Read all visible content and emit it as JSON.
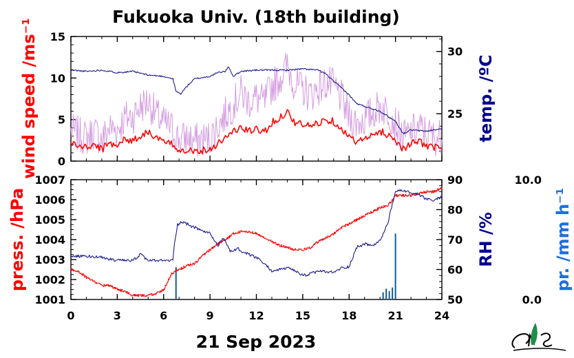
{
  "chart_data": [
    {
      "type": "line",
      "title": "Fukuoka Univ. (18th building)",
      "x_range": [
        0,
        24
      ],
      "y_left": {
        "label": "wind speed /ms⁻¹",
        "ylim": [
          0,
          15
        ],
        "ticks": [
          "0",
          "5",
          "10",
          "15"
        ],
        "color": "#ff0000"
      },
      "y_right": {
        "label": "temp. /ºC",
        "ylim": [
          21.2,
          31.2
        ],
        "ticks": [
          "25",
          "30"
        ],
        "color": "#00008b"
      },
      "colors": {
        "wind_mean": "#ff0000",
        "wind_gust": "#d49be0",
        "temperature": "#1a1a8c"
      },
      "series": [
        {
          "key": "wind_mean",
          "axis": "left",
          "x": [
            0,
            0.5,
            1,
            1.5,
            2,
            2.5,
            3,
            3.5,
            4,
            4.5,
            5,
            5.5,
            6,
            6.5,
            7,
            7.5,
            8,
            8.5,
            9,
            9.5,
            10,
            10.5,
            11,
            11.5,
            12,
            12.5,
            13,
            13.5,
            14,
            14.5,
            15,
            15.5,
            16,
            16.5,
            17,
            17.5,
            18,
            18.5,
            19,
            19.5,
            20,
            20.5,
            21,
            21.5,
            22,
            22.5,
            23,
            23.5,
            24
          ],
          "y": [
            2.2,
            1.8,
            1.6,
            2.0,
            1.4,
            2.2,
            2.0,
            2.6,
            2.5,
            3.0,
            3.6,
            2.8,
            2.3,
            2.0,
            1.4,
            1.4,
            1.2,
            1.3,
            1.4,
            2.2,
            2.8,
            3.6,
            4.0,
            3.6,
            3.8,
            3.5,
            4.6,
            5.2,
            6.0,
            4.6,
            4.4,
            4.2,
            4.6,
            5.0,
            4.8,
            4.0,
            2.8,
            2.4,
            2.6,
            3.0,
            3.6,
            3.2,
            2.5,
            1.5,
            2.0,
            2.4,
            1.9,
            1.6,
            1.8
          ]
        },
        {
          "key": "wind_gust",
          "axis": "left",
          "x": [
            0,
            0.5,
            1,
            1.5,
            2,
            2.5,
            3,
            3.5,
            4,
            4.5,
            5,
            5.5,
            6,
            6.5,
            7,
            7.5,
            8,
            8.5,
            9,
            9.5,
            10,
            10.5,
            11,
            11.5,
            12,
            12.5,
            13,
            13.5,
            14,
            14.5,
            15,
            15.5,
            16,
            16.5,
            17,
            17.5,
            18,
            18.5,
            19,
            19.5,
            20,
            20.5,
            21,
            21.5,
            22,
            22.5,
            23,
            23.5,
            24
          ],
          "y": [
            3.6,
            3.2,
            2.8,
            3.6,
            2.6,
            4.0,
            3.8,
            5.2,
            5.4,
            6.6,
            7.2,
            5.6,
            4.6,
            4.0,
            2.6,
            2.8,
            2.4,
            2.6,
            2.8,
            4.2,
            5.6,
            6.8,
            8.2,
            7.2,
            7.6,
            7.0,
            9.0,
            10.0,
            11.4,
            9.2,
            8.6,
            8.0,
            8.8,
            9.4,
            9.0,
            7.6,
            5.2,
            4.6,
            5.0,
            5.8,
            6.6,
            6.0,
            4.6,
            2.8,
            3.4,
            4.0,
            3.4,
            2.8,
            3.0
          ]
        },
        {
          "key": "temperature",
          "axis": "right",
          "x": [
            0,
            1,
            2,
            3,
            4,
            5,
            6,
            6.6,
            6.8,
            7.1,
            7.5,
            8,
            9,
            9.5,
            10,
            10.2,
            10.5,
            11,
            12,
            13,
            14,
            15,
            16,
            16.5,
            17,
            17.5,
            18,
            18.5,
            19,
            20,
            20.5,
            21,
            21.5,
            22,
            23,
            24
          ],
          "y": [
            28.5,
            28.4,
            28.5,
            28.3,
            28.4,
            28.1,
            28.0,
            27.8,
            26.8,
            26.6,
            27.2,
            27.8,
            28.0,
            28.3,
            28.4,
            28.8,
            28.0,
            28.4,
            28.5,
            28.5,
            28.5,
            28.6,
            28.5,
            28.2,
            27.6,
            27.1,
            26.5,
            25.8,
            25.6,
            25.2,
            24.8,
            24.4,
            23.4,
            23.7,
            23.6,
            23.8
          ]
        }
      ]
    },
    {
      "type": "line",
      "x_range": [
        0,
        24
      ],
      "xlabel": "21 Sep 2023",
      "x_ticks": [
        "0",
        "3",
        "6",
        "9",
        "12",
        "15",
        "18",
        "21",
        "24"
      ],
      "y_left": {
        "label": "press. /hPa",
        "ylim": [
          1001,
          1007
        ],
        "ticks": [
          "1001",
          "1002",
          "1003",
          "1004",
          "1005",
          "1006",
          "1007"
        ],
        "color": "#ff0000"
      },
      "y_right": {
        "label": "RH /%",
        "ylim": [
          50,
          90
        ],
        "ticks": [
          "50",
          "60",
          "70",
          "80",
          "90"
        ],
        "color": "#00008b"
      },
      "y_right2": {
        "label": "pr. /mm h⁻¹",
        "ylim": [
          0,
          10
        ],
        "ticks": [
          "0.0",
          "10.0"
        ],
        "color": "#1f6fe0"
      },
      "colors": {
        "pressure": "#ff0000",
        "humidity": "#1a1a8c",
        "precipitation": "#0a5aa0"
      },
      "series": [
        {
          "key": "pressure",
          "axis": "left",
          "x": [
            0,
            0.5,
            1,
            1.5,
            2,
            2.5,
            3,
            3.5,
            4,
            4.5,
            5,
            5.5,
            6,
            6.5,
            7,
            7.5,
            8,
            8.5,
            9,
            9.5,
            10,
            10.5,
            11,
            11.5,
            12,
            12.5,
            13,
            13.5,
            14,
            14.5,
            15,
            15.5,
            16,
            16.5,
            17,
            17.5,
            18,
            18.5,
            19,
            19.5,
            20,
            20.5,
            21,
            21.5,
            22,
            22.5,
            23,
            23.5,
            24
          ],
          "y": [
            1002.5,
            1002.4,
            1002.1,
            1001.9,
            1001.7,
            1001.7,
            1001.5,
            1001.4,
            1001.2,
            1001.2,
            1001.2,
            1001.3,
            1001.5,
            1002.3,
            1002.5,
            1002.7,
            1002.8,
            1003.2,
            1003.5,
            1003.8,
            1004.0,
            1004.3,
            1004.4,
            1004.4,
            1004.3,
            1004.1,
            1003.9,
            1003.7,
            1003.6,
            1003.5,
            1003.5,
            1003.6,
            1003.9,
            1004.1,
            1004.3,
            1004.6,
            1004.8,
            1005.0,
            1005.2,
            1005.4,
            1005.6,
            1005.7,
            1006.2,
            1006.2,
            1006.2,
            1006.3,
            1006.4,
            1006.4,
            1006.6
          ]
        },
        {
          "key": "humidity",
          "axis": "right",
          "x": [
            0,
            1,
            2,
            3,
            4,
            4.5,
            5,
            6,
            6.6,
            6.7,
            6.9,
            7.2,
            8,
            8.5,
            9,
            9.5,
            9.9,
            10.3,
            10.8,
            11,
            12,
            12.5,
            13,
            13.5,
            14,
            14.5,
            15,
            15.5,
            16,
            17,
            17.5,
            18,
            18.5,
            19,
            19.5,
            20,
            20.5,
            21,
            21.5,
            22,
            22.5,
            23,
            23.5,
            24
          ],
          "y": [
            64.5,
            64.5,
            64.0,
            63.0,
            63.0,
            65.0,
            63.0,
            63.0,
            63.0,
            69.0,
            75.0,
            76.0,
            74.0,
            73.0,
            72.0,
            68.0,
            70.5,
            66.0,
            67.0,
            66.0,
            64.0,
            62.0,
            59.5,
            60.0,
            60.5,
            59.5,
            58.0,
            58.5,
            59.5,
            59.0,
            60.5,
            61.0,
            67.5,
            68.5,
            68.0,
            69.5,
            75.5,
            86.0,
            86.5,
            85.5,
            85.0,
            83.5,
            83.0,
            84.5
          ]
        },
        {
          "key": "precipitation",
          "axis": "right2",
          "style": "bars",
          "x": [
            6.8,
            20.2,
            20.4,
            20.6,
            20.8,
            21.0
          ],
          "y": [
            2.7,
            0.6,
            0.9,
            0.7,
            1.0,
            5.5
          ]
        }
      ]
    }
  ]
}
